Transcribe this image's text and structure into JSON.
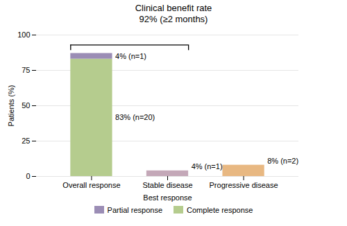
{
  "chart_data": {
    "type": "bar",
    "title": "Clinical benefit rate",
    "subtitle": "92% (≥2 months)",
    "xlabel": "Best response",
    "ylabel": "Patients (%)",
    "categories": [
      "Overall response",
      "Stable disease",
      "Progressive disease"
    ],
    "stacked": true,
    "data_labels": true,
    "series": [
      {
        "name": "Complete response",
        "color": "#b5cc8e",
        "values": [
          83,
          null,
          null
        ],
        "value_labels": [
          "83% (n=20)",
          null,
          null
        ]
      },
      {
        "name": "Partial response",
        "color": "#9b8db5",
        "values": [
          4,
          null,
          null
        ],
        "value_labels": [
          "4% (n=1)",
          null,
          null
        ]
      },
      {
        "color": "#c4a8b8",
        "values": [
          null,
          4,
          null
        ],
        "value_labels": [
          null,
          "4% (n=1)",
          null
        ]
      },
      {
        "color": "#e8b882",
        "values": [
          null,
          null,
          8
        ],
        "value_labels": [
          null,
          null,
          "8% (n=2)"
        ]
      }
    ],
    "bracket": {
      "from": "Overall response",
      "to": "Stable disease",
      "y": 93
    },
    "ylim": [
      0,
      100
    ],
    "yticks": [
      0,
      25,
      50,
      75,
      100
    ],
    "grid": true,
    "legend": "bottom"
  }
}
